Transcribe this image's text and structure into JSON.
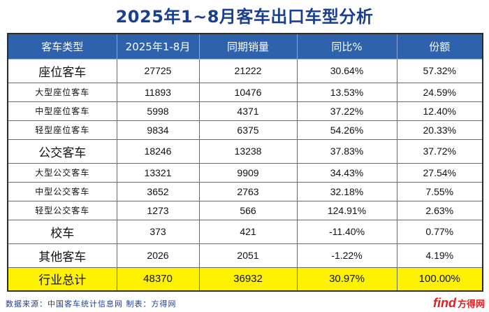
{
  "title": "2025年1~8月客车出口车型分析",
  "headers": [
    "客车类型",
    "2025年1-8月",
    "同期销量",
    "同比%",
    "份额"
  ],
  "rows": [
    {
      "type": "major",
      "cat": "座位客车",
      "v2025": "27725",
      "prev": "21222",
      "yoy": "30.64%",
      "share": "57.32%"
    },
    {
      "type": "sub",
      "cat": "大型座位客车",
      "v2025": "11893",
      "prev": "10476",
      "yoy": "13.53%",
      "share": "24.59%"
    },
    {
      "type": "sub",
      "cat": "中型座位客车",
      "v2025": "5998",
      "prev": "4371",
      "yoy": "37.22%",
      "share": "12.40%"
    },
    {
      "type": "sub",
      "cat": "轻型座位客车",
      "v2025": "9834",
      "prev": "6375",
      "yoy": "54.26%",
      "share": "20.33%"
    },
    {
      "type": "major",
      "cat": "公交客车",
      "v2025": "18246",
      "prev": "13238",
      "yoy": "37.83%",
      "share": "37.72%"
    },
    {
      "type": "sub",
      "cat": "大型公交客车",
      "v2025": "13321",
      "prev": "9909",
      "yoy": "34.43%",
      "share": "27.54%"
    },
    {
      "type": "sub",
      "cat": "中型公交客车",
      "v2025": "3652",
      "prev": "2763",
      "yoy": "32.18%",
      "share": "7.55%"
    },
    {
      "type": "sub",
      "cat": "轻型公交客车",
      "v2025": "1273",
      "prev": "566",
      "yoy": "124.91%",
      "share": "2.63%"
    },
    {
      "type": "major",
      "cat": "校车",
      "v2025": "373",
      "prev": "421",
      "yoy": "-11.40%",
      "share": "0.77%"
    },
    {
      "type": "major",
      "cat": "其他客车",
      "v2025": "2026",
      "prev": "2051",
      "yoy": "-1.22%",
      "share": "4.19%"
    },
    {
      "type": "total",
      "cat": "行业总计",
      "v2025": "48370",
      "prev": "36932",
      "yoy": "30.97%",
      "share": "100.00%"
    }
  ],
  "footer": {
    "source": "数据来源：中国客车统计信息网 制表：方得网"
  },
  "watermark": {
    "logo": "find",
    "text": "方得网"
  },
  "colors": {
    "title": "#1a3f8f",
    "header_bg": "#2e62ad",
    "total_bg": "#fff200",
    "watermark": "#e02020"
  }
}
